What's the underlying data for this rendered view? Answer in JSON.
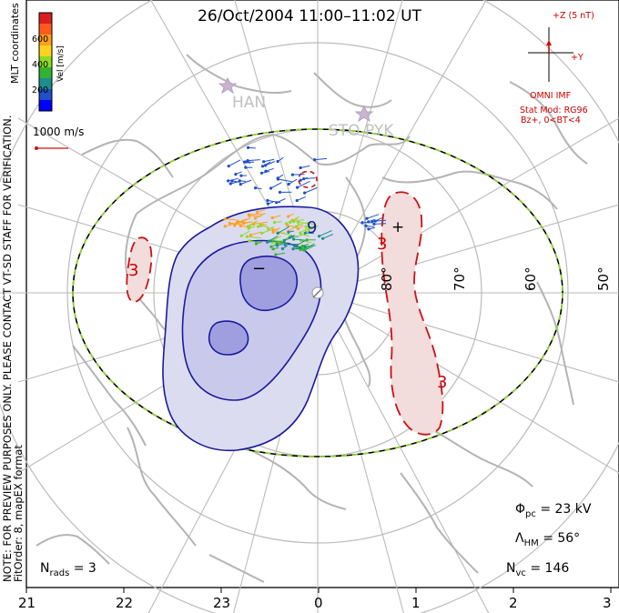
{
  "title": "26/Oct/2004 11:00–11:02 UT",
  "note_lines": [
    "NOTE: FOR PREVIEW PURPOSES ONLY. PLEASE CONTACT VT-SD STAFF FOR VERIFICATION.",
    "FitOrder: 8, mapEX format"
  ],
  "coordinates": "MLT coordinates",
  "colorbar": {
    "label": "Vel [m/s]",
    "ticks": [
      "600",
      "400",
      "200"
    ],
    "colors": [
      "#d81e1e",
      "#ff5a1e",
      "#ffa01e",
      "#ffd21e",
      "#8cdc28",
      "#32b432",
      "#1e8c8c",
      "#1e50c8",
      "#0000ff"
    ]
  },
  "ref_vector": "1000 m/s",
  "imf": {
    "plus_z": "+Z (5 nT)",
    "plus_y": "+Y",
    "source": "OMNI IMF",
    "model": "Stat Mod: RG96",
    "condition": "Bz+, 0<BT<4"
  },
  "stations": [
    "HAN",
    "STO",
    "PYK"
  ],
  "contour_labels": {
    "neg_value": "9",
    "neg_sign": "−",
    "pos_value": "3",
    "pos_sign": "+"
  },
  "lat_labels": [
    "80°",
    "70°",
    "60°",
    "50°"
  ],
  "mlt_ticks": [
    "21",
    "22",
    "23",
    "0",
    "1",
    "2",
    "3"
  ],
  "stats": {
    "phi_pc_sym": "Φ",
    "phi_pc_sub": "pc",
    "phi_pc_val": "= 23 kV",
    "lambda_hm_sym": "Λ",
    "lambda_hm_sub": "HM",
    "lambda_hm_val": "= 56°",
    "n_rads_sym": "N",
    "n_rads_sub": "rads",
    "n_rads_val": "= 3",
    "n_vc_sym": "N",
    "n_vc_sub": "vc",
    "n_vc_val": "= 146"
  },
  "colors": {
    "negative_contour": "#1a1aa0",
    "negative_fill": "#dcdcf0",
    "positive_contour": "#cc1111",
    "positive_fill": "#f3dcdc",
    "grid": "#bbbbbb",
    "coast": "#b4b4b4",
    "boundary_dash": "#8cdc28"
  }
}
